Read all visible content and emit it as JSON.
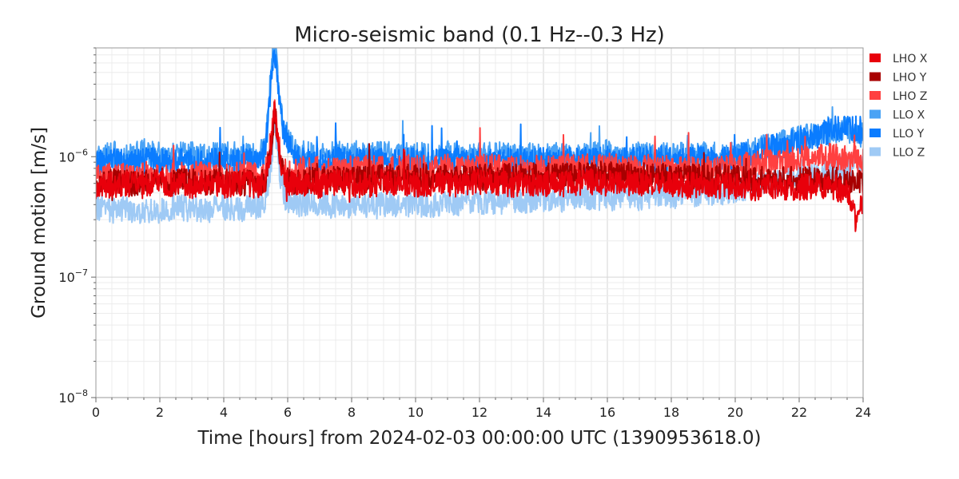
{
  "chart_data": {
    "type": "line",
    "title": "Micro-seismic band (0.1 Hz--0.3 Hz)",
    "xlabel": "Time [hours] from 2024-02-03 00:00:00 UTC (1390953618.0)",
    "ylabel": "Ground motion [m/s]",
    "x_range": [
      0,
      24
    ],
    "y_range": [
      1e-08,
      8e-06
    ],
    "y_scale": "log",
    "grid": true,
    "legend_position": "outside-top-right",
    "x_ticks": [
      {
        "value": 0,
        "label": "0"
      },
      {
        "value": 2,
        "label": "2"
      },
      {
        "value": 4,
        "label": "4"
      },
      {
        "value": 6,
        "label": "6"
      },
      {
        "value": 8,
        "label": "8"
      },
      {
        "value": 10,
        "label": "10"
      },
      {
        "value": 12,
        "label": "12"
      },
      {
        "value": 14,
        "label": "14"
      },
      {
        "value": 16,
        "label": "16"
      },
      {
        "value": 18,
        "label": "18"
      },
      {
        "value": 20,
        "label": "20"
      },
      {
        "value": 22,
        "label": "22"
      },
      {
        "value": 24,
        "label": "24"
      }
    ],
    "y_ticks": [
      {
        "value": 1e-08,
        "base": "10",
        "exp": "−8"
      },
      {
        "value": 1e-07,
        "base": "10",
        "exp": "−7"
      },
      {
        "value": 1e-06,
        "base": "10",
        "exp": "−6"
      }
    ],
    "series": [
      {
        "name": "LHO X",
        "color": "#e8000b",
        "x": [
          0,
          0.5,
          1,
          1.5,
          2,
          2.5,
          3,
          3.5,
          4,
          4.5,
          5,
          5.3,
          5.5,
          5.6,
          5.7,
          5.9,
          6.2,
          6.5,
          7,
          7.5,
          8,
          8.5,
          9,
          9.5,
          10,
          10.5,
          11,
          11.5,
          12,
          12.5,
          13,
          13.5,
          14,
          14.5,
          15,
          15.5,
          16,
          16.5,
          17,
          17.5,
          18,
          18.5,
          19,
          19.5,
          20,
          20.5,
          21,
          21.5,
          22,
          22.5,
          23,
          23.5,
          23.8,
          24
        ],
        "y": [
          5.5e-07,
          5.8e-07,
          6e-07,
          5.7e-07,
          6.2e-07,
          5.9e-07,
          5.6e-07,
          6e-07,
          5.8e-07,
          6.1e-07,
          5.7e-07,
          6e-07,
          1.4e-06,
          2.6e-06,
          1.2e-06,
          6.2e-07,
          5.9e-07,
          6e-07,
          5.8e-07,
          6.1e-07,
          6e-07,
          5.7e-07,
          6.2e-07,
          6e-07,
          5.9e-07,
          6.1e-07,
          6e-07,
          5.8e-07,
          6.2e-07,
          6e-07,
          5.9e-07,
          6.1e-07,
          6e-07,
          5.8e-07,
          6.1e-07,
          6.2e-07,
          6e-07,
          5.9e-07,
          6.1e-07,
          5.8e-07,
          6e-07,
          5.7e-07,
          5.9e-07,
          5.8e-07,
          5.6e-07,
          5.5e-07,
          5.7e-07,
          5.6e-07,
          5.5e-07,
          5.8e-07,
          5.6e-07,
          5.2e-07,
          3e-07,
          4.5e-07
        ]
      },
      {
        "name": "LHO Y",
        "color": "#a80000",
        "x": [
          0,
          0.5,
          1,
          1.5,
          2,
          2.5,
          3,
          3.5,
          4,
          4.5,
          5,
          5.3,
          5.5,
          5.6,
          5.7,
          5.9,
          6.2,
          6.5,
          7,
          7.5,
          8,
          8.5,
          9,
          9.5,
          10,
          10.5,
          11,
          11.5,
          12,
          12.5,
          13,
          13.5,
          14,
          14.5,
          15,
          15.5,
          16,
          16.5,
          17,
          17.5,
          18,
          18.5,
          19,
          19.5,
          20,
          20.5,
          21,
          21.5,
          22,
          22.5,
          23,
          23.5,
          24
        ],
        "y": [
          6e-07,
          6.2e-07,
          6.1e-07,
          6e-07,
          6.3e-07,
          6.1e-07,
          6.2e-07,
          6e-07,
          6.2e-07,
          6.1e-07,
          6e-07,
          6.2e-07,
          1.3e-06,
          2.4e-06,
          1.1e-06,
          6.3e-07,
          6.2e-07,
          6.3e-07,
          6.4e-07,
          6.5e-07,
          6.6e-07,
          6.5e-07,
          6.7e-07,
          6.6e-07,
          6.8e-07,
          6.7e-07,
          6.6e-07,
          6.8e-07,
          6.7e-07,
          6.9e-07,
          6.8e-07,
          7e-07,
          6.9e-07,
          7e-07,
          7.1e-07,
          7e-07,
          7.2e-07,
          7.1e-07,
          7e-07,
          6.9e-07,
          7e-07,
          6.8e-07,
          6.7e-07,
          6.8e-07,
          6.6e-07,
          6.5e-07,
          6.6e-07,
          6.4e-07,
          6.5e-07,
          6.3e-07,
          6.4e-07,
          6.2e-07,
          6.3e-07
        ]
      },
      {
        "name": "LHO Z",
        "color": "#ff4040",
        "x": [
          0,
          0.5,
          1,
          1.5,
          2,
          2.5,
          3,
          3.5,
          4,
          4.5,
          5,
          5.3,
          5.5,
          5.6,
          5.7,
          5.9,
          6.2,
          6.5,
          7,
          7.5,
          8,
          8.5,
          9,
          9.5,
          10,
          10.5,
          11,
          11.5,
          12,
          12.5,
          13,
          13.5,
          14,
          14.5,
          15,
          15.5,
          16,
          16.5,
          17,
          17.5,
          18,
          18.5,
          19,
          19.5,
          20,
          20.5,
          21,
          21.5,
          22,
          22.5,
          23,
          23.5,
          24
        ],
        "y": [
          6.5e-07,
          7e-07,
          6.8e-07,
          7.2e-07,
          7e-07,
          6.9e-07,
          7.1e-07,
          7.3e-07,
          7e-07,
          7.2e-07,
          7e-07,
          7.2e-07,
          1.5e-06,
          2.8e-06,
          1.3e-06,
          7.4e-07,
          7.5e-07,
          7.6e-07,
          7.8e-07,
          7.7e-07,
          7.9e-07,
          8e-07,
          7.8e-07,
          8.1e-07,
          8e-07,
          7.9e-07,
          8.2e-07,
          8e-07,
          8.1e-07,
          8.3e-07,
          8e-07,
          8.2e-07,
          8.1e-07,
          8.3e-07,
          8.4e-07,
          8.2e-07,
          8.3e-07,
          8.1e-07,
          8e-07,
          8.2e-07,
          7.9e-07,
          7.8e-07,
          7.7e-07,
          7.9e-07,
          8.2e-07,
          8.6e-07,
          9e-07,
          9.3e-07,
          9.5e-07,
          9.8e-07,
          1e-06,
          9.6e-07,
          9.4e-07
        ]
      },
      {
        "name": "LLO X",
        "color": "#4aa3f5",
        "x": [
          0,
          0.5,
          1,
          1.5,
          2,
          2.5,
          3,
          3.5,
          4,
          4.5,
          5,
          5.3,
          5.45,
          5.55,
          5.65,
          5.8,
          6.0,
          6.3,
          6.5,
          7,
          7.5,
          8,
          8.5,
          9,
          9.5,
          10,
          10.5,
          11,
          11.5,
          12,
          12.5,
          13,
          13.5,
          14,
          14.5,
          15,
          15.5,
          16,
          16.5,
          17,
          17.5,
          18,
          18.5,
          19,
          19.5,
          20,
          20.5,
          21,
          21.5,
          22,
          22.5,
          23,
          23.5,
          24
        ],
        "y": [
          1e-06,
          1.05e-06,
          1e-06,
          1.1e-06,
          1.02e-06,
          1e-06,
          1.05e-06,
          1e-06,
          1.08e-06,
          1.03e-06,
          1e-06,
          1.2e-06,
          4e-06,
          8e-06,
          6e-06,
          2.2e-06,
          1.4e-06,
          1.1e-06,
          1.05e-06,
          1e-06,
          1.08e-06,
          1.02e-06,
          1e-06,
          1.05e-06,
          1e-06,
          1.03e-06,
          1e-06,
          1.07e-06,
          1e-06,
          1.02e-06,
          1.05e-06,
          1e-06,
          1.03e-06,
          1e-06,
          1.06e-06,
          1e-06,
          1.04e-06,
          1.08e-06,
          1e-06,
          1.03e-06,
          1e-06,
          1.05e-06,
          1e-06,
          1.02e-06,
          1e-06,
          1.05e-06,
          1.1e-06,
          1.2e-06,
          1.3e-06,
          1.4e-06,
          1.5e-06,
          1.6e-06,
          1.7e-06,
          1.5e-06
        ]
      },
      {
        "name": "LLO Y",
        "color": "#0a7cff",
        "x": [
          0,
          0.5,
          1,
          1.5,
          2,
          2.5,
          3,
          3.5,
          4,
          4.5,
          5,
          5.3,
          5.45,
          5.55,
          5.65,
          5.8,
          6.0,
          6.3,
          6.5,
          7,
          7.5,
          8,
          8.5,
          9,
          9.5,
          10,
          10.5,
          11,
          11.5,
          12,
          12.5,
          13,
          13.5,
          14,
          14.5,
          15,
          15.5,
          16,
          16.5,
          17,
          17.5,
          18,
          18.5,
          19,
          19.5,
          20,
          20.5,
          21,
          21.5,
          22,
          22.5,
          23,
          23.5,
          24
        ],
        "y": [
          9e-07,
          9.2e-07,
          9e-07,
          9.3e-07,
          9.1e-07,
          9e-07,
          9.2e-07,
          9e-07,
          9.3e-07,
          9.1e-07,
          9e-07,
          1.1e-06,
          3.5e-06,
          7.5e-06,
          5e-06,
          2e-06,
          1.3e-06,
          9.5e-07,
          9.2e-07,
          9e-07,
          9.3e-07,
          9.1e-07,
          9e-07,
          9.2e-07,
          9e-07,
          9.3e-07,
          9.1e-07,
          9.2e-07,
          9e-07,
          9.3e-07,
          9.1e-07,
          9.2e-07,
          9e-07,
          9.3e-07,
          9.1e-07,
          9.4e-07,
          9.2e-07,
          9.5e-07,
          9.3e-07,
          9.6e-07,
          9.4e-07,
          9.5e-07,
          9.4e-07,
          9.6e-07,
          9.5e-07,
          9.8e-07,
          1.05e-06,
          1.15e-06,
          1.25e-06,
          1.35e-06,
          1.5e-06,
          1.65e-06,
          1.8e-06,
          1.6e-06
        ]
      },
      {
        "name": "LLO Z",
        "color": "#9fcaf5",
        "x": [
          0,
          0.5,
          1,
          1.5,
          2,
          2.5,
          3,
          3.5,
          4,
          4.5,
          5,
          5.3,
          5.5,
          5.6,
          5.7,
          5.9,
          6.2,
          6.5,
          7,
          7.5,
          8,
          8.5,
          9,
          9.5,
          10,
          10.5,
          11,
          11.5,
          12,
          12.5,
          13,
          13.5,
          14,
          14.5,
          15,
          15.5,
          16,
          16.5,
          17,
          17.5,
          18,
          18.5,
          19,
          19.5,
          20,
          20.5,
          21,
          21.5,
          22,
          22.5,
          23,
          23.5,
          24
        ],
        "y": [
          3.8e-07,
          3.6e-07,
          3.7e-07,
          3.5e-07,
          3.6e-07,
          3.8e-07,
          3.7e-07,
          3.6e-07,
          3.8e-07,
          3.7e-07,
          3.9e-07,
          4.2e-07,
          1e-06,
          2e-06,
          9e-07,
          4.5e-07,
          4.2e-07,
          4e-07,
          4.1e-07,
          3.9e-07,
          4e-07,
          3.8e-07,
          4e-07,
          3.9e-07,
          4.1e-07,
          4e-07,
          4.2e-07,
          4.1e-07,
          4.3e-07,
          4.2e-07,
          4.4e-07,
          4.3e-07,
          4.5e-07,
          4.4e-07,
          4.5e-07,
          4.6e-07,
          4.5e-07,
          4.7e-07,
          4.6e-07,
          4.8e-07,
          4.7e-07,
          4.9e-07,
          5e-07,
          5.1e-07,
          5.3e-07,
          5.6e-07,
          5.9e-07,
          6.2e-07,
          6.6e-07,
          7e-07,
          7.5e-07,
          8e-07,
          8.5e-07
        ]
      }
    ]
  }
}
